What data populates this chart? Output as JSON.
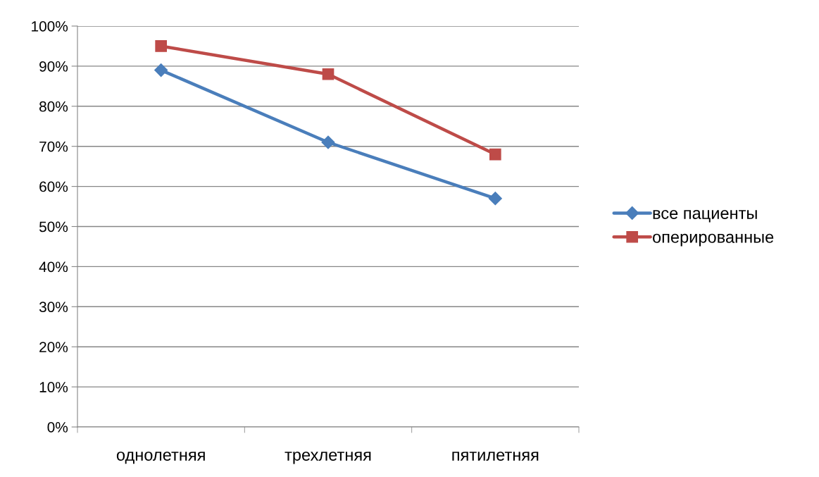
{
  "chart_data": {
    "type": "line",
    "categories": [
      "однолетняя",
      "трехлетняя",
      "пятилетняя"
    ],
    "series": [
      {
        "name": "все пациенты",
        "color": "#4a7ebb",
        "marker": "diamond",
        "values": [
          89,
          71,
          57
        ]
      },
      {
        "name": "оперированные",
        "color": "#be4b48",
        "marker": "square",
        "values": [
          95,
          88,
          68
        ]
      }
    ],
    "ylim": [
      0,
      100
    ],
    "yticks": [
      {
        "value": 0,
        "label": "0%"
      },
      {
        "value": 10,
        "label": "10%"
      },
      {
        "value": 20,
        "label": "20%"
      },
      {
        "value": 30,
        "label": "30%"
      },
      {
        "value": 40,
        "label": "40%"
      },
      {
        "value": 50,
        "label": "50%"
      },
      {
        "value": 60,
        "label": "60%"
      },
      {
        "value": 70,
        "label": "70%"
      },
      {
        "value": 80,
        "label": "80%"
      },
      {
        "value": 90,
        "label": "90%"
      },
      {
        "value": 100,
        "label": "100%"
      }
    ],
    "grid": "y",
    "legend": "right",
    "line_style": "solid"
  }
}
